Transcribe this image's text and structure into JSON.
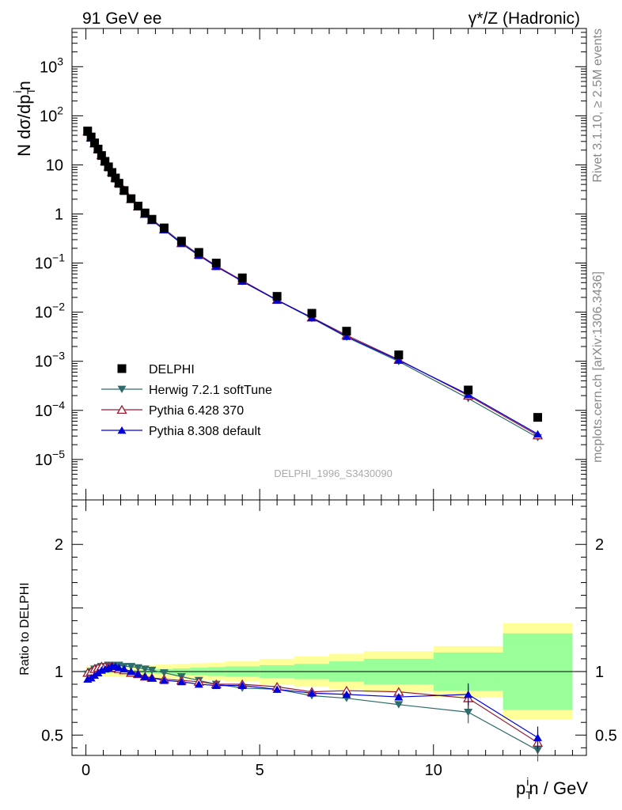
{
  "header": {
    "left": "91 GeV ee",
    "right": "γ*/Z (Hadronic)"
  },
  "side_labels": {
    "rivet": "Rivet 3.1.10, ≥ 2.5M events",
    "mcplots": "mcplots.cern.ch [arXiv:1306.3436]"
  },
  "analysis_id": "DELPHI_1996_S3430090",
  "axes": {
    "top_ylabel": "N dσ/dp",
    "top_ylabel_sup": "i",
    "top_ylabel_sub": "T",
    "top_ylabel_tail": "n",
    "bottom_ylabel": "Ratio to DELPHI",
    "xlabel_p": "p",
    "xlabel_sup": "i",
    "xlabel_sub": "T",
    "xlabel_tail": "n / GeV"
  },
  "legend": [
    {
      "label": "DELPHI",
      "color": "#000000",
      "marker": "square"
    },
    {
      "label": "Herwig 7.2.1 softTune",
      "color": "#2e6b6b",
      "marker": "triangle-down"
    },
    {
      "label": "Pythia 6.428 370",
      "color": "#9b1b30",
      "marker": "triangle-open"
    },
    {
      "label": "Pythia 8.308 default",
      "color": "#0000dd",
      "marker": "triangle-up"
    }
  ],
  "chart_data": [
    {
      "type": "scatter",
      "panel": "main",
      "xlim": [
        -0.4,
        14.4
      ],
      "ylim": [
        1.5e-06,
        6000
      ],
      "yscale": "log",
      "yticks": [
        {
          "label": "10",
          "sup": "3"
        },
        {
          "label": "10",
          "sup": "2"
        },
        {
          "label": "10",
          "sup": ""
        },
        {
          "label": "1",
          "sup": ""
        },
        {
          "label": "10",
          "sup": "−1"
        },
        {
          "label": "10",
          "sup": "−2"
        },
        {
          "label": "10",
          "sup": "−3"
        },
        {
          "label": "10",
          "sup": "−4"
        },
        {
          "label": "10",
          "sup": "−5"
        }
      ],
      "x": [
        0.05,
        0.15,
        0.25,
        0.35,
        0.45,
        0.55,
        0.65,
        0.75,
        0.85,
        0.95,
        1.1,
        1.3,
        1.5,
        1.7,
        1.9,
        2.25,
        2.75,
        3.25,
        3.75,
        4.5,
        5.5,
        6.5,
        7.5,
        9.0,
        11.0,
        13.0
      ],
      "series": [
        {
          "name": "DELPHI",
          "values": [
            49,
            37,
            28,
            21,
            15.5,
            11.8,
            9.1,
            7.0,
            5.4,
            4.2,
            3.0,
            2.05,
            1.45,
            1.05,
            0.78,
            0.52,
            0.28,
            0.165,
            0.1,
            0.05,
            0.021,
            0.0095,
            0.0041,
            0.00135,
            0.00026,
            7.2e-05
          ]
        },
        {
          "name": "Herwig 7.2.1 softTune",
          "values": [
            48,
            36,
            28,
            21.5,
            16,
            12.2,
            9.5,
            7.3,
            5.6,
            4.4,
            3.1,
            2.1,
            1.48,
            1.06,
            0.78,
            0.5,
            0.265,
            0.15,
            0.088,
            0.042,
            0.0175,
            0.0075,
            0.0031,
            0.00099,
            0.000175,
            2.8e-05
          ]
        },
        {
          "name": "Pythia 6.428 370",
          "values": [
            48,
            36,
            27.5,
            21,
            15.8,
            12,
            9.3,
            7.2,
            5.5,
            4.3,
            3.05,
            2.02,
            1.42,
            1.0,
            0.75,
            0.485,
            0.255,
            0.148,
            0.088,
            0.044,
            0.0178,
            0.0078,
            0.0034,
            0.00108,
            0.0002,
            3.1e-05
          ]
        },
        {
          "name": "Pythia 8.308 default",
          "values": [
            46,
            35,
            27,
            20.8,
            15.7,
            12,
            9.3,
            7.2,
            5.5,
            4.3,
            3.05,
            2.02,
            1.42,
            1.0,
            0.74,
            0.475,
            0.25,
            0.143,
            0.085,
            0.0425,
            0.0175,
            0.0077,
            0.0032,
            0.00105,
            0.00021,
            3.3e-05
          ]
        }
      ]
    },
    {
      "type": "line",
      "panel": "ratio",
      "xlim": [
        -0.4,
        14.4
      ],
      "ylim": [
        0.34,
        2.35
      ],
      "xticks": [
        "0",
        "5",
        "10"
      ],
      "yticks": [
        "2",
        "1",
        "0.5"
      ],
      "bands": {
        "x_edges": [
          0.0,
          0.1,
          0.2,
          0.3,
          0.4,
          0.5,
          0.6,
          0.7,
          0.8,
          0.9,
          1.0,
          1.2,
          1.4,
          1.6,
          1.8,
          2.0,
          2.5,
          3.0,
          3.5,
          4.0,
          5.0,
          6.0,
          7.0,
          8.0,
          10.0,
          12.0,
          14.0
        ],
        "stat_halfwidth": [
          0.01,
          0.01,
          0.01,
          0.01,
          0.01,
          0.01,
          0.01,
          0.01,
          0.01,
          0.01,
          0.012,
          0.012,
          0.013,
          0.015,
          0.016,
          0.02,
          0.025,
          0.03,
          0.035,
          0.04,
          0.05,
          0.06,
          0.08,
          0.1,
          0.15,
          0.3
        ],
        "total_halfwidth": [
          0.04,
          0.04,
          0.04,
          0.04,
          0.04,
          0.04,
          0.04,
          0.04,
          0.04,
          0.04,
          0.045,
          0.045,
          0.05,
          0.05,
          0.05,
          0.055,
          0.06,
          0.065,
          0.07,
          0.08,
          0.1,
          0.12,
          0.14,
          0.16,
          0.2,
          0.38
        ]
      },
      "x": [
        0.05,
        0.15,
        0.25,
        0.35,
        0.45,
        0.55,
        0.65,
        0.75,
        0.85,
        0.95,
        1.1,
        1.3,
        1.5,
        1.7,
        1.9,
        2.25,
        2.75,
        3.25,
        3.75,
        4.5,
        5.5,
        6.5,
        7.5,
        9.0,
        11.0,
        13.0
      ],
      "series": [
        {
          "name": "Herwig 7.2.1 softTune",
          "values": [
            0.98,
            1.0,
            1.02,
            1.03,
            1.04,
            1.04,
            1.05,
            1.05,
            1.05,
            1.05,
            1.04,
            1.04,
            1.03,
            1.02,
            1.01,
            0.99,
            0.96,
            0.93,
            0.9,
            0.87,
            0.86,
            0.81,
            0.79,
            0.74,
            0.68,
            0.38
          ]
        },
        {
          "name": "Pythia 6.428 370",
          "values": [
            0.99,
            1.0,
            1.02,
            1.03,
            1.04,
            1.04,
            1.04,
            1.04,
            1.03,
            1.02,
            1.01,
            0.99,
            0.98,
            0.96,
            0.95,
            0.94,
            0.93,
            0.92,
            0.9,
            0.9,
            0.88,
            0.84,
            0.85,
            0.84,
            0.79,
            0.44
          ]
        },
        {
          "name": "Pythia 8.308 default",
          "values": [
            0.94,
            0.95,
            0.97,
            0.99,
            1.01,
            1.02,
            1.03,
            1.04,
            1.04,
            1.03,
            1.02,
            1.0,
            0.98,
            0.96,
            0.95,
            0.93,
            0.92,
            0.9,
            0.89,
            0.89,
            0.86,
            0.83,
            0.82,
            0.8,
            0.82,
            0.48
          ]
        }
      ]
    }
  ]
}
